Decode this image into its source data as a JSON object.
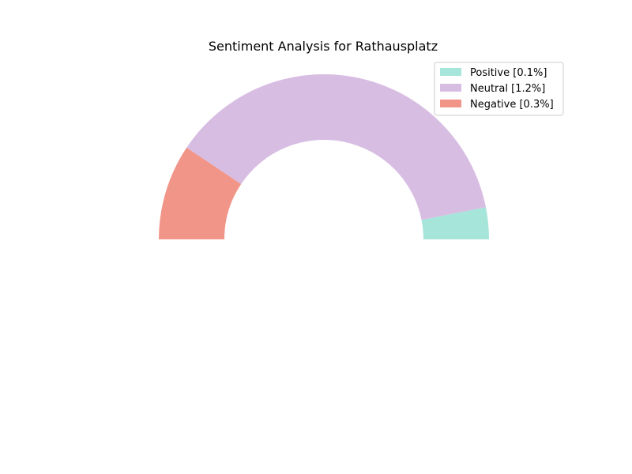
{
  "chart_data": {
    "type": "pie",
    "variant": "semi-donut",
    "title": "Sentiment Analysis for Rathausplatz",
    "legend_placement": "top-right",
    "slices": [
      {
        "label": "Positive",
        "value": 0.1,
        "legend": "Positive [0.1%]",
        "color": "#a6e5d9"
      },
      {
        "label": "Neutral",
        "value": 1.2,
        "legend": "Neutral [1.2%]",
        "color": "#d8bde3"
      },
      {
        "label": "Negative",
        "value": 0.3,
        "legend": "Negative [0.3%]",
        "color": "#f29589"
      }
    ]
  }
}
